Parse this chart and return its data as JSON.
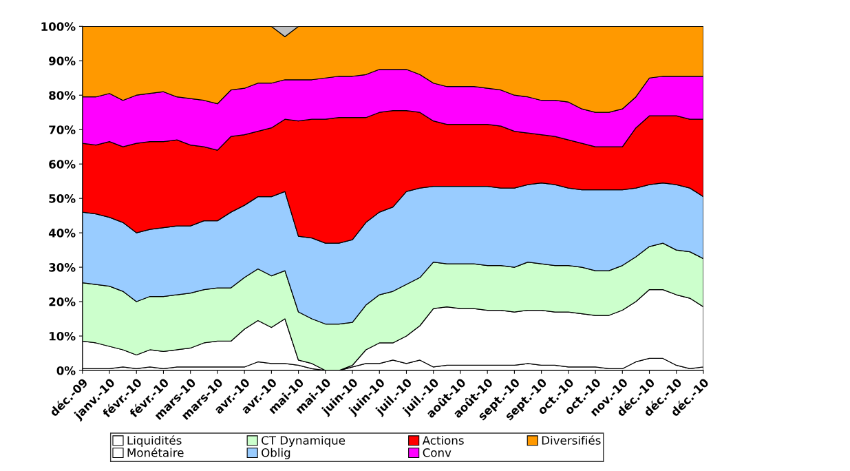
{
  "chart_data": {
    "type": "area",
    "stacked": true,
    "categories": [
      "déc.-09",
      null,
      "janv.-10",
      null,
      "févr.-10",
      null,
      "févr.-10",
      null,
      "mars-10",
      null,
      "mars-10",
      null,
      "avr.-10",
      null,
      "avr.-10",
      null,
      "mai-10",
      null,
      "mai-10",
      null,
      "juin-10",
      null,
      "juin-10",
      null,
      "juil.-10",
      null,
      "juil.-10",
      null,
      "août-10",
      null,
      "août-10",
      null,
      "sept.-10",
      null,
      "sept.-10",
      null,
      "oct.-10",
      null,
      "oct.-10",
      null,
      "nov.-10",
      null,
      "déc.-10",
      null,
      "déc.-10",
      null,
      "déc.-10"
    ],
    "ylim": [
      0,
      100
    ],
    "yticks": [
      {
        "value": 0,
        "label": "0%"
      },
      {
        "value": 10,
        "label": "10%"
      },
      {
        "value": 20,
        "label": "20%"
      },
      {
        "value": 30,
        "label": "30%"
      },
      {
        "value": 40,
        "label": "40%"
      },
      {
        "value": 50,
        "label": "50%"
      },
      {
        "value": 60,
        "label": "60%"
      },
      {
        "value": 70,
        "label": "70%"
      },
      {
        "value": 80,
        "label": "80%"
      },
      {
        "value": 90,
        "label": "90%"
      },
      {
        "value": 100,
        "label": "100%"
      }
    ],
    "grid": false,
    "legend": "bottom",
    "series": [
      {
        "name": "Liquidités",
        "color": "#ffffff",
        "values": [
          0.5,
          0.5,
          0.5,
          1,
          0.5,
          1,
          0.5,
          1,
          1,
          1,
          1,
          1,
          1,
          2.5,
          2,
          2,
          1.5,
          0.5,
          0,
          0,
          1,
          2,
          2,
          3,
          2,
          3,
          1,
          1.5,
          1.5,
          1.5,
          1.5,
          1.5,
          1.5,
          2,
          1.5,
          1.5,
          1,
          1,
          1,
          0.5,
          0.5,
          2.5,
          3.5,
          3.5,
          1.5,
          0.5,
          1
        ]
      },
      {
        "name": "Monétaire",
        "color": "#ffffff",
        "values": [
          8,
          7.5,
          6.5,
          5,
          4,
          5,
          5,
          5,
          5.5,
          7,
          7.5,
          7.5,
          11,
          12,
          10.5,
          13,
          1.5,
          1.5,
          0,
          0,
          0.5,
          4,
          6,
          5,
          8,
          10,
          17,
          17,
          16.5,
          16.5,
          16,
          16,
          15.5,
          15.5,
          16,
          15.5,
          16,
          15.5,
          15,
          15.5,
          17,
          17.5,
          20,
          20,
          20.5,
          20.5,
          17.5
        ]
      },
      {
        "name": "CT Dynamique",
        "color": "#ccffcc",
        "values": [
          17,
          17,
          17.5,
          17,
          15.5,
          15.5,
          16,
          16,
          16,
          15.5,
          15.5,
          15.5,
          15,
          15,
          15,
          14,
          14,
          13,
          13.5,
          13.5,
          12.5,
          13,
          14,
          15,
          15,
          14,
          13.5,
          12.5,
          13,
          13,
          13,
          13,
          13,
          14,
          13.5,
          13.5,
          13.5,
          13.5,
          13,
          13,
          13,
          13,
          12.5,
          13.5,
          13,
          13.5,
          14
        ]
      },
      {
        "name": "Oblig",
        "color": "#99ccff",
        "values": [
          20.5,
          20.5,
          20,
          20,
          20,
          19.5,
          20,
          20,
          19.5,
          20,
          19.5,
          22,
          21,
          21,
          23,
          23,
          22,
          23.5,
          23.5,
          23.5,
          24,
          24,
          24,
          24.5,
          27,
          26,
          22,
          22.5,
          22.5,
          22.5,
          23,
          22.5,
          23,
          22.5,
          23.5,
          23.5,
          22.5,
          22.5,
          23.5,
          23.5,
          22,
          20,
          18,
          17.5,
          19,
          18.5,
          18
        ]
      },
      {
        "name": "Actions",
        "color": "#ff0000",
        "values": [
          20,
          20,
          22,
          22,
          26,
          25.5,
          25,
          25,
          23.5,
          21.5,
          20.5,
          22,
          20.5,
          19,
          20,
          21,
          33.5,
          34.5,
          36,
          36.5,
          35.5,
          30.5,
          29,
          28,
          23.5,
          22,
          19,
          18,
          18,
          18,
          18,
          18,
          16.5,
          15,
          14,
          14,
          14,
          13.5,
          12.5,
          12.5,
          12.5,
          17.5,
          20,
          19.5,
          20,
          20,
          22.5
        ]
      },
      {
        "name": "Conv",
        "color": "#ff00ff",
        "values": [
          13.5,
          14,
          14,
          13.5,
          14,
          14,
          14.5,
          12.5,
          13.5,
          13.5,
          13.5,
          13.5,
          13.5,
          14,
          13,
          11.5,
          12,
          11.5,
          12,
          12,
          12,
          12.5,
          12.5,
          12,
          12,
          11,
          11,
          11,
          11,
          11,
          10.5,
          10.5,
          10.5,
          10.5,
          10,
          10.5,
          11,
          10,
          10,
          10,
          11,
          9,
          11,
          11.5,
          11.5,
          12.5,
          12.5
        ]
      },
      {
        "name": "Diversifiés",
        "color": "#ff9900",
        "values": [
          20.5,
          20.5,
          19.5,
          21.5,
          20,
          19.5,
          19,
          20.5,
          21,
          21.5,
          22.5,
          18.5,
          18,
          16.5,
          16.5,
          12.5,
          15.5,
          15.5,
          15,
          14.5,
          14.5,
          14,
          12.5,
          12.5,
          12.5,
          14,
          16.5,
          17.5,
          17.5,
          17.5,
          18,
          18.5,
          20,
          20.5,
          21.5,
          21.5,
          22,
          24,
          25,
          25,
          24,
          20.5,
          15,
          14.5,
          14.5,
          14.5,
          14.5
        ]
      },
      {
        "color": "#c0c0c0",
        "values": [
          0,
          0,
          0,
          0,
          0,
          0,
          0,
          0,
          0,
          0,
          0,
          0,
          0,
          0,
          0,
          3,
          0,
          0,
          0,
          0,
          0,
          0,
          0,
          0,
          0,
          0,
          0,
          0,
          0,
          0,
          0,
          0,
          0,
          0,
          0,
          0,
          0,
          0,
          0,
          0,
          0,
          0,
          0,
          0,
          0,
          0,
          0
        ]
      }
    ]
  }
}
